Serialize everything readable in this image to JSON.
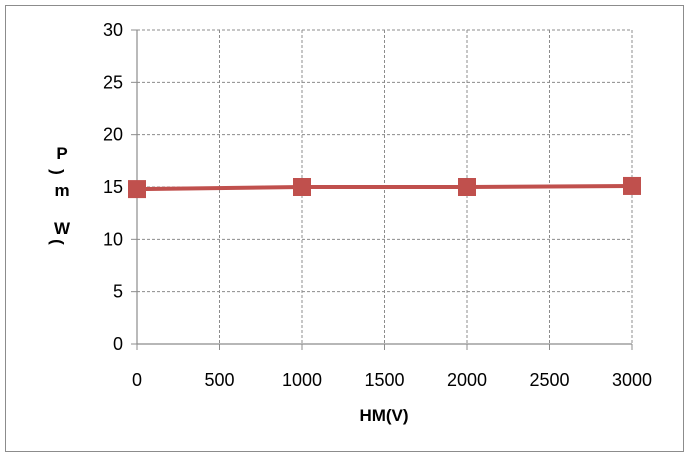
{
  "chart_data": {
    "type": "line",
    "title": "",
    "xlabel": "HM(V)",
    "ylabel_parts": [
      "P",
      ")",
      "m",
      "W",
      "("
    ],
    "x_ticks": [
      "0",
      "500",
      "1000",
      "1500",
      "2000",
      "2500",
      "3000"
    ],
    "y_ticks": [
      "0",
      "5",
      "10",
      "15",
      "20",
      "25",
      "30"
    ],
    "xlim": [
      0,
      3000
    ],
    "ylim": [
      0,
      30
    ],
    "grid": true,
    "series": [
      {
        "x": [
          0,
          1000,
          2000,
          3000
        ],
        "y": [
          14.8,
          15.0,
          15.0,
          15.1
        ],
        "color": "#C0504D",
        "marker": "square"
      }
    ]
  }
}
